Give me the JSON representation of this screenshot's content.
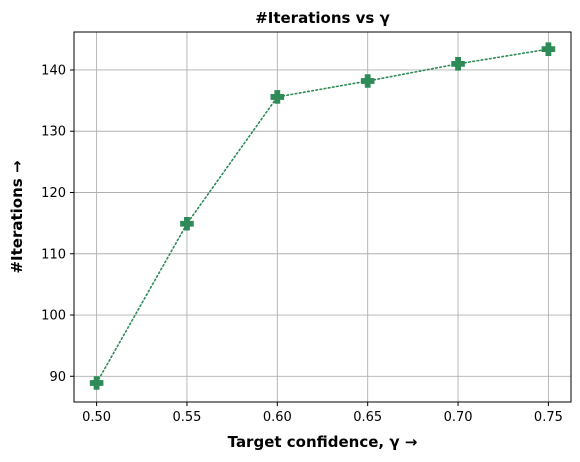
{
  "chart_data": {
    "type": "line",
    "title": "#Iterations vs γ",
    "xlabel": "Target confidence, γ →",
    "ylabel": "#Iterations →",
    "x": [
      0.5,
      0.55,
      0.6,
      0.65,
      0.7,
      0.75
    ],
    "xticks": [
      "0.50",
      "0.55",
      "0.60",
      "0.65",
      "0.70",
      "0.75"
    ],
    "yticks": [
      "90",
      "100",
      "110",
      "120",
      "130",
      "140"
    ],
    "xlim": [
      0.4875,
      0.7625
    ],
    "ylim": [
      85.8,
      146.2
    ],
    "grid": true,
    "series": [
      {
        "values": [
          88.9,
          114.9,
          135.6,
          138.2,
          141.0,
          143.4
        ],
        "color": "#2e8b57",
        "line_style": "dotted",
        "marker": "plus-filled"
      }
    ]
  }
}
